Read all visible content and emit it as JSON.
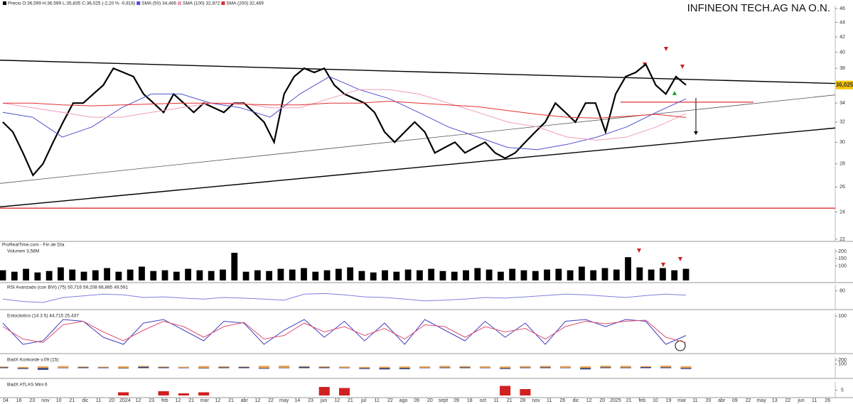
{
  "title": "INFINEON TECH.AG NA O.N.",
  "x_axis_labels": [
    "04",
    "16",
    "23",
    "nov",
    "10",
    "21",
    "dic",
    "11",
    "20",
    "2024",
    "12",
    "23",
    "feb",
    "12",
    "21",
    "mar",
    "12",
    "21",
    "abr",
    "12",
    "22",
    "may",
    "14",
    "23",
    "jun",
    "12",
    "21",
    "jul",
    "11",
    "22",
    "ago",
    "09",
    "20",
    "sept",
    "09",
    "18",
    "oct",
    "11",
    "21",
    "28",
    "nov",
    "11",
    "26",
    "dic",
    "12",
    "20",
    "2025",
    "21",
    "feb",
    "10",
    "19",
    "mar",
    "11",
    "20",
    "abr",
    "09",
    "22",
    "may",
    "13",
    "22",
    "jun",
    "11",
    "26"
  ],
  "chart_data": [
    {
      "type": "line",
      "source": "ProRealTime.com - Fin de Día",
      "log_scale": true,
      "ylim": [
        22,
        46
      ],
      "yticks": [
        22,
        24,
        26,
        28,
        30,
        32,
        34,
        38,
        40,
        42,
        44,
        46
      ],
      "last_price": {
        "value": 36.025,
        "label": "36,025"
      },
      "series": [
        {
          "name": "Precio O:36,599 H:36,599 L:35,835 C:36,025 (-2,20 % -0,816)",
          "color": "#000000",
          "values": [
            32,
            31,
            29,
            27,
            28,
            30,
            32,
            34,
            34,
            35,
            36,
            38,
            37.5,
            37,
            35,
            34,
            33,
            35,
            34,
            33,
            34,
            33.5,
            33,
            34,
            34,
            33,
            32,
            30,
            35,
            37,
            38,
            37.5,
            38,
            36,
            35,
            34.5,
            34,
            33,
            31,
            30,
            31,
            32,
            31,
            29,
            29.5,
            30,
            29,
            29.5,
            30,
            29,
            28.5,
            29,
            30,
            31,
            32,
            34,
            33,
            32,
            34,
            34,
            31,
            35,
            37,
            37.5,
            38.5,
            36,
            35,
            37,
            36.025
          ]
        },
        {
          "name": "SMA (50) 34,466",
          "color": "#5050d0",
          "values": [
            33,
            32.5,
            30.5,
            31.5,
            33.5,
            35,
            35,
            34,
            33.5,
            32.5,
            35,
            37,
            35.5,
            34.5,
            33,
            31.5,
            30.5,
            29.5,
            29.3,
            29.8,
            30.5,
            31.5,
            33,
            34.466
          ]
        },
        {
          "name": "SMA (100) 32,872",
          "color": "#f09cbc",
          "values": [
            34,
            33.5,
            33,
            32.5,
            32.5,
            33,
            33.5,
            34,
            34,
            33.5,
            33.5,
            34.5,
            35.5,
            35.5,
            35,
            34,
            33,
            32,
            31.5,
            30.5,
            30.2,
            30.5,
            31.5,
            32.872
          ]
        },
        {
          "name": "SMA (200) 32,469",
          "color": "#e03030",
          "values": [
            34,
            34,
            33.8,
            33.7,
            33.8,
            33.9,
            34,
            34,
            33.9,
            33.8,
            33.8,
            34,
            34,
            34.2,
            34,
            33.8,
            33.6,
            33.2,
            32.8,
            32.5,
            32.4,
            32.6,
            32.8,
            32.469
          ]
        }
      ],
      "trendlines": [
        {
          "values": [
            39,
            36.2
          ],
          "color": "#000000"
        },
        {
          "values": [
            24.4,
            31.4
          ],
          "color": "#000000"
        },
        {
          "values": [
            26.3,
            34.9
          ],
          "color": "#555555"
        }
      ],
      "levels": [
        {
          "value": 24.3,
          "color": "#e03030"
        },
        {
          "value": 34.1,
          "color": "#e03030"
        }
      ]
    },
    {
      "type": "bar",
      "title": "Volumen 3,58M",
      "color": "#000000",
      "ylim": [
        0,
        200
      ],
      "yticks": [
        100,
        150,
        200
      ],
      "series": [
        {
          "color": "#000000",
          "values": [
            70,
            60,
            80,
            55,
            65,
            90,
            75,
            60,
            70,
            85,
            60,
            75,
            95,
            65,
            70,
            60,
            80,
            70,
            65,
            75,
            190,
            60,
            70,
            65,
            80,
            75,
            85,
            60,
            70,
            80,
            90,
            65,
            55,
            70,
            60,
            75,
            70,
            80,
            65,
            60,
            70,
            85,
            75,
            60,
            80,
            70,
            65,
            75,
            80,
            70,
            95,
            70,
            85,
            75,
            160,
            90,
            75,
            85,
            70,
            80
          ]
        }
      ]
    },
    {
      "type": "line",
      "title": "RSI Avanzado (con BVI) (75) 50,716 59,208 66,885 49,591",
      "ylim": [
        30,
        90
      ],
      "yticks": [
        80
      ],
      "series": [
        {
          "color": "#8080e0",
          "values": [
            55,
            48,
            45,
            60,
            65,
            70,
            68,
            60,
            62,
            58,
            55,
            60,
            58,
            55,
            52,
            70,
            72,
            68,
            62,
            60,
            55,
            50,
            52,
            55,
            60,
            58,
            62,
            66,
            70,
            68,
            64,
            60,
            66,
            70,
            67
          ]
        }
      ]
    },
    {
      "type": "line",
      "title": "Estocástico (14 3 5) 44,715 25,437",
      "ylim": [
        0,
        100
      ],
      "yticks": [
        100
      ],
      "series": [
        {
          "color": "#4040c0",
          "values": [
            80,
            20,
            30,
            90,
            85,
            40,
            20,
            80,
            90,
            60,
            30,
            85,
            80,
            20,
            60,
            90,
            40,
            85,
            30,
            80,
            20,
            90,
            60,
            30,
            85,
            40,
            80,
            20,
            85,
            90,
            70,
            90,
            85,
            20,
            45
          ]
        },
        {
          "color": "#e05070",
          "values": [
            70,
            35,
            25,
            75,
            85,
            55,
            30,
            60,
            85,
            70,
            40,
            70,
            82,
            35,
            45,
            80,
            55,
            70,
            45,
            65,
            35,
            75,
            70,
            40,
            70,
            55,
            65,
            35,
            70,
            85,
            78,
            85,
            88,
            40,
            25
          ]
        }
      ]
    },
    {
      "type": "bar",
      "title": "BadX Konkorde v.09 (15)",
      "ylim": [
        -200,
        200
      ],
      "yticks": [
        200,
        100
      ],
      "series": [
        {
          "color": "#e8a050",
          "values": [
            40,
            30,
            45,
            50,
            40,
            35,
            45,
            55,
            40,
            35,
            50,
            45,
            40,
            55,
            60,
            50,
            45,
            40,
            30,
            35,
            40,
            45,
            55,
            50,
            45,
            40,
            50,
            55,
            50,
            45,
            60,
            55,
            50,
            60,
            45
          ]
        },
        {
          "color": "#203c80",
          "values": [
            20,
            -20,
            -40,
            10,
            20,
            15,
            -10,
            30,
            20,
            10,
            -10,
            20,
            25,
            -15,
            10,
            30,
            20,
            10,
            -20,
            -30,
            -25,
            10,
            15,
            20,
            10,
            -20,
            15,
            20,
            10,
            -30,
            20,
            15,
            25,
            20,
            -21
          ]
        }
      ]
    },
    {
      "type": "bar",
      "title": "BadX ATLAS Mini 6",
      "ylim": [
        0,
        10
      ],
      "yticks": [
        5
      ],
      "series": [
        {
          "color": "#d02020",
          "values": [
            0,
            0,
            0,
            0,
            0,
            0,
            3,
            0,
            4,
            2,
            3,
            0,
            0,
            0,
            0,
            0,
            8,
            7,
            0,
            0,
            0,
            0,
            0,
            0,
            0,
            9,
            6,
            0,
            0,
            0,
            0,
            0,
            0,
            0,
            0
          ]
        }
      ]
    }
  ]
}
